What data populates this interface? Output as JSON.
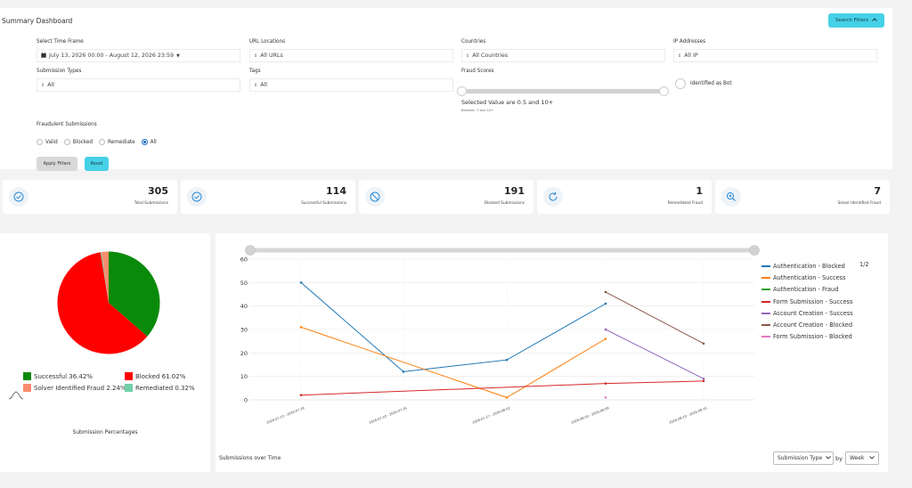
{
  "header": {
    "title": "Summary Dashboard",
    "search_filters_label": "Search Filters",
    "search_filters_icon": "chevron-up-icon"
  },
  "filters": {
    "time_frame": {
      "label": "Select Time Frame",
      "value": "July 13, 2026 00:00 - August 12, 2026 23:59",
      "icon": "calendar-icon"
    },
    "url_locations": {
      "label": "URL Locations",
      "value": "All URLs"
    },
    "countries": {
      "label": "Countries",
      "value": "All Countries"
    },
    "ip_addresses": {
      "label": "IP Addresses",
      "value": "All IP"
    },
    "submission_types": {
      "label": "Submission Types",
      "value": "All"
    },
    "tags": {
      "label": "Tags",
      "value": "All"
    },
    "fraud_scores": {
      "label": "Fraud Scores",
      "selected_text": "Selected Value are 0.5 and 10+",
      "between_text": "Between .5 and 10+"
    },
    "identified_as_bot": {
      "label": "Identified as Bot",
      "checked": false
    },
    "fraudulent_submissions": {
      "label": "Fraudulent Submissions",
      "options": [
        "Valid",
        "Blocked",
        "Remediate",
        "All"
      ],
      "selected": "All"
    },
    "apply_label": "Apply Filters",
    "reset_label": "Reset"
  },
  "stats": [
    {
      "value": "305",
      "label": "Total Submissions",
      "icon": "check-circle-icon"
    },
    {
      "value": "114",
      "label": "Successful Submissions",
      "icon": "check-circle-icon"
    },
    {
      "value": "191",
      "label": "Blocked Submissions",
      "icon": "block-icon"
    },
    {
      "value": "1",
      "label": "Remediated Fraud",
      "icon": "refresh-icon"
    },
    {
      "value": "7",
      "label": "Solver Identified Fraud",
      "icon": "search-bug-icon"
    }
  ],
  "colors": {
    "accent": "#46d1e7",
    "pie_successful": "#0a8a0a",
    "pie_blocked": "#ff0000",
    "pie_solver": "#fa8c6e",
    "pie_remediated": "#6fcfa7"
  },
  "chart_data": [
    {
      "type": "pie",
      "caption": "Submission Percentages",
      "slices": [
        {
          "name": "Successful",
          "value": 36.42,
          "label": "Successful 36.42%",
          "color": "#0a8a0a"
        },
        {
          "name": "Blocked",
          "value": 61.02,
          "label": "Blocked 61.02%",
          "color": "#ff0000"
        },
        {
          "name": "Remediated",
          "value": 0.32,
          "label": "Remediated 0.32%",
          "color": "#6fcfa7"
        },
        {
          "name": "Solver Identified Fraud",
          "value": 2.24,
          "label": "Solver Identified Fraud 2.24%",
          "color": "#fa8c6e"
        }
      ]
    },
    {
      "type": "line",
      "caption": "Submissions over Time",
      "categories": [
        "2026-07-13 - 2026-07-19",
        "2026-07-20 - 2026-07-26",
        "2026-07-27 - 2026-08-02",
        "2026-08-03 - 2026-08-09",
        "2026-08-10 - 2026-08-16"
      ],
      "yticks": [
        0,
        10,
        20,
        30,
        40,
        50,
        60
      ],
      "ylim": [
        0,
        60
      ],
      "series": [
        {
          "name": "Authentication - Blocked",
          "color": "#1f77b4",
          "values": [
            50,
            12,
            17,
            41,
            null
          ]
        },
        {
          "name": "Authentication - Success",
          "color": "#ff7f0e",
          "values": [
            31,
            null,
            1,
            26,
            null
          ]
        },
        {
          "name": "Authentication - Fraud",
          "color": "#2ca02c",
          "values": [
            null,
            null,
            null,
            null,
            null
          ]
        },
        {
          "name": "Form Submission - Success",
          "color": "#d62728",
          "values": [
            2,
            null,
            null,
            7,
            8
          ]
        },
        {
          "name": "Account Creation - Success",
          "color": "#9467bd",
          "values": [
            null,
            null,
            null,
            30,
            9
          ]
        },
        {
          "name": "Account Creation - Blocked",
          "color": "#8c564b",
          "values": [
            null,
            null,
            null,
            46,
            24
          ]
        },
        {
          "name": "Form Submission - Blocked",
          "color": "#e377c2",
          "values": [
            null,
            null,
            null,
            1,
            null
          ]
        }
      ],
      "legend_page": "1/2"
    }
  ],
  "controls": {
    "type_select": "Submission Type",
    "by_label": "by",
    "period_select": "Week"
  }
}
